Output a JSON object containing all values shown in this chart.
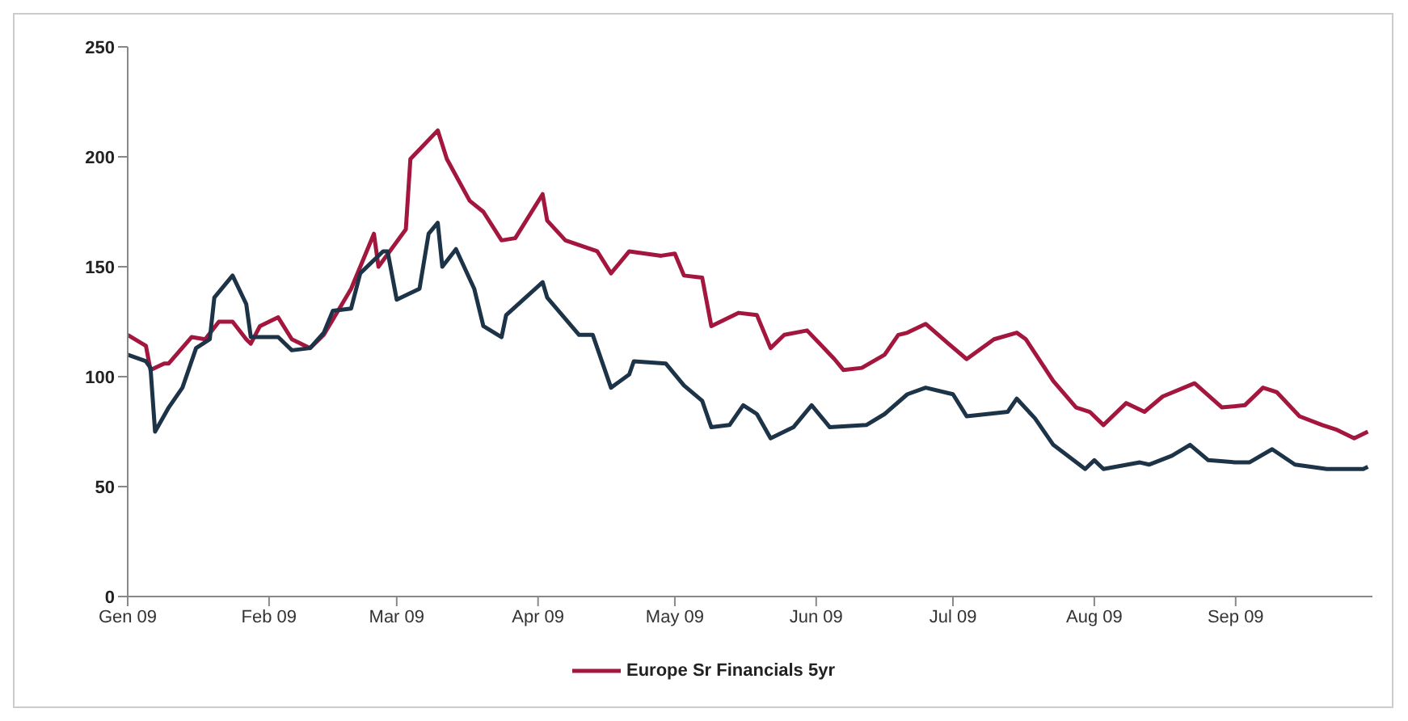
{
  "chart_data": {
    "type": "line",
    "xlim": [
      "2009-01-01",
      "2009-10-01"
    ],
    "xticks": [
      {
        "value": "2009-01-01",
        "label": "Gen 09"
      },
      {
        "value": "2009-02-01",
        "label": "Feb 09"
      },
      {
        "value": "2009-03-01",
        "label": "Mar 09"
      },
      {
        "value": "2009-04-01",
        "label": "Apr 09"
      },
      {
        "value": "2009-05-01",
        "label": "May 09"
      },
      {
        "value": "2009-06-01",
        "label": "Jun 09"
      },
      {
        "value": "2009-07-01",
        "label": "Jul 09"
      },
      {
        "value": "2009-08-01",
        "label": "Aug 09"
      },
      {
        "value": "2009-09-01",
        "label": "Sep 09"
      }
    ],
    "ylim": [
      0,
      250
    ],
    "yticks": [
      0,
      50,
      100,
      150,
      200,
      250
    ],
    "grid": false,
    "legend": "bottom",
    "series": [
      {
        "name": "Europe Sr Financials 5yr",
        "color": "#a3173f",
        "x": [
          "2009-01-01",
          "2009-01-05",
          "2009-01-06",
          "2009-01-09",
          "2009-01-10",
          "2009-01-15",
          "2009-01-18",
          "2009-01-21",
          "2009-01-24",
          "2009-01-27",
          "2009-01-28",
          "2009-01-30",
          "2009-02-03",
          "2009-02-06",
          "2009-02-10",
          "2009-02-13",
          "2009-02-19",
          "2009-02-24",
          "2009-02-25",
          "2009-03-03",
          "2009-03-04",
          "2009-03-10",
          "2009-03-12",
          "2009-03-17",
          "2009-03-20",
          "2009-03-24",
          "2009-03-27",
          "2009-04-02",
          "2009-04-03",
          "2009-04-07",
          "2009-04-14",
          "2009-04-17",
          "2009-04-21",
          "2009-04-28",
          "2009-05-01",
          "2009-05-03",
          "2009-05-07",
          "2009-05-09",
          "2009-05-15",
          "2009-05-19",
          "2009-05-22",
          "2009-05-25",
          "2009-05-30",
          "2009-06-05",
          "2009-06-07",
          "2009-06-11",
          "2009-06-16",
          "2009-06-19",
          "2009-06-21",
          "2009-06-25",
          "2009-06-30",
          "2009-07-04",
          "2009-07-10",
          "2009-07-15",
          "2009-07-17",
          "2009-07-23",
          "2009-07-28",
          "2009-07-31",
          "2009-08-03",
          "2009-08-08",
          "2009-08-12",
          "2009-08-16",
          "2009-08-23",
          "2009-08-29",
          "2009-09-03",
          "2009-09-07",
          "2009-09-10",
          "2009-09-15",
          "2009-09-20",
          "2009-09-23",
          "2009-09-27",
          "2009-09-30"
        ],
        "values": [
          119,
          114,
          103,
          106,
          106,
          118,
          117,
          125,
          125,
          117,
          115,
          123,
          127,
          117,
          113,
          119,
          140,
          165,
          150,
          167,
          199,
          212,
          199,
          180,
          175,
          162,
          163,
          183,
          171,
          162,
          157,
          147,
          157,
          155,
          156,
          146,
          145,
          123,
          129,
          128,
          113,
          119,
          121,
          108,
          103,
          104,
          110,
          119,
          120,
          124,
          115,
          108,
          117,
          120,
          117,
          98,
          86,
          84,
          78,
          88,
          84,
          91,
          97,
          86,
          87,
          95,
          93,
          82,
          78,
          76,
          72,
          75
        ]
      },
      {
        "color": "#1c3348",
        "x": [
          "2009-01-01",
          "2009-01-05",
          "2009-01-06",
          "2009-01-07",
          "2009-01-10",
          "2009-01-13",
          "2009-01-16",
          "2009-01-19",
          "2009-01-20",
          "2009-01-24",
          "2009-01-27",
          "2009-01-28",
          "2009-02-03",
          "2009-02-06",
          "2009-02-10",
          "2009-02-13",
          "2009-02-15",
          "2009-02-19",
          "2009-02-21",
          "2009-02-26",
          "2009-02-27",
          "2009-03-01",
          "2009-03-06",
          "2009-03-08",
          "2009-03-10",
          "2009-03-11",
          "2009-03-14",
          "2009-03-18",
          "2009-03-20",
          "2009-03-24",
          "2009-03-25",
          "2009-04-02",
          "2009-04-03",
          "2009-04-10",
          "2009-04-13",
          "2009-04-17",
          "2009-04-21",
          "2009-04-22",
          "2009-04-29",
          "2009-05-03",
          "2009-05-07",
          "2009-05-09",
          "2009-05-13",
          "2009-05-16",
          "2009-05-19",
          "2009-05-22",
          "2009-05-27",
          "2009-05-31",
          "2009-06-04",
          "2009-06-12",
          "2009-06-16",
          "2009-06-21",
          "2009-06-25",
          "2009-07-01",
          "2009-07-04",
          "2009-07-13",
          "2009-07-15",
          "2009-07-19",
          "2009-07-23",
          "2009-07-30",
          "2009-08-01",
          "2009-08-03",
          "2009-08-11",
          "2009-08-13",
          "2009-08-18",
          "2009-08-22",
          "2009-08-26",
          "2009-09-01",
          "2009-09-04",
          "2009-09-09",
          "2009-09-14",
          "2009-09-21",
          "2009-09-29",
          "2009-09-30"
        ],
        "values": [
          110,
          107,
          104,
          75,
          86,
          95,
          113,
          117,
          136,
          146,
          133,
          118,
          118,
          112,
          113,
          120,
          130,
          131,
          147,
          157,
          157,
          135,
          140,
          165,
          170,
          150,
          158,
          140,
          123,
          118,
          128,
          143,
          136,
          119,
          119,
          95,
          101,
          107,
          106,
          96,
          89,
          77,
          78,
          87,
          83,
          72,
          77,
          87,
          77,
          78,
          83,
          92,
          95,
          92,
          82,
          84,
          90,
          81,
          69,
          58,
          62,
          58,
          61,
          60,
          64,
          69,
          62,
          61,
          61,
          67,
          60,
          58,
          58,
          59
        ]
      }
    ]
  }
}
